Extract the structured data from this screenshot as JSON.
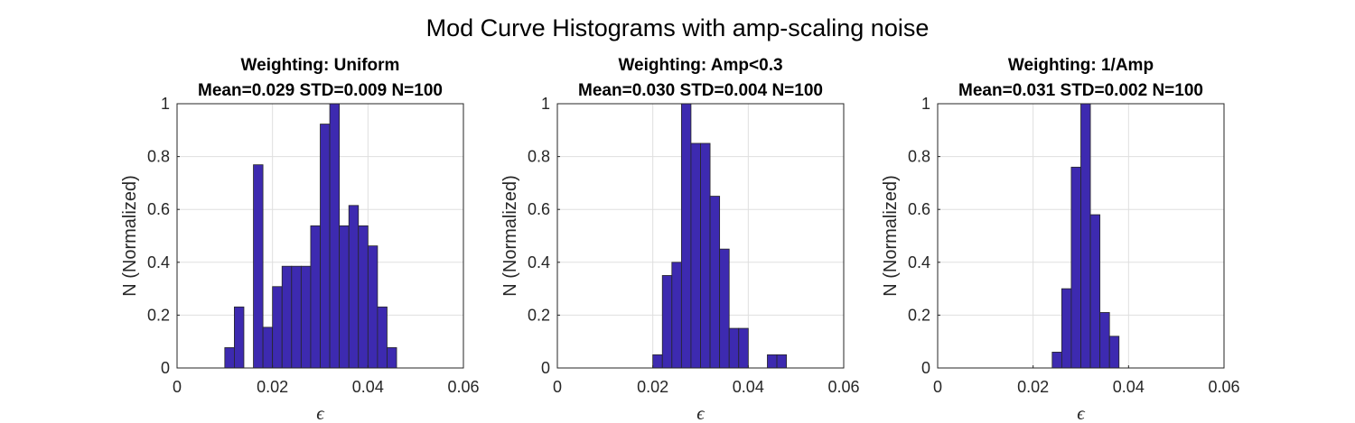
{
  "figure": {
    "suptitle": "Mod Curve Histograms with amp-scaling noise"
  },
  "colors": {
    "bar_fill": "#3d2ab0",
    "bar_edge": "#262626",
    "grid": "#dfdfdf",
    "axis": "#262626"
  },
  "chart_data": [
    {
      "type": "bar",
      "title_line1": "Weighting: Uniform",
      "title_line2": "Mean=0.029 STD=0.009 N=100",
      "xlabel": "ϵ",
      "ylabel": "N (Normalized)",
      "xlim": [
        0,
        0.06
      ],
      "ylim": [
        0,
        1
      ],
      "xticks": [
        "0",
        "0.02",
        "0.04",
        "0.06"
      ],
      "yticks": [
        "0",
        "0.2",
        "0.4",
        "0.6",
        "0.8",
        "1"
      ],
      "grid": true,
      "bin_edges": [
        0.01,
        0.012,
        0.014,
        0.016,
        0.018,
        0.02,
        0.022,
        0.024,
        0.026,
        0.028,
        0.03,
        0.032,
        0.034,
        0.036,
        0.038,
        0.04,
        0.042,
        0.044,
        0.046,
        0.048,
        0.05,
        0.052
      ],
      "values": [
        0.077,
        0.231,
        0,
        0.769,
        0.154,
        0.308,
        0.385,
        0.385,
        0.385,
        0.538,
        0.923,
        1.0,
        0.538,
        0.615,
        0.538,
        0.462,
        0.231,
        0.077,
        0,
        0,
        0
      ]
    },
    {
      "type": "bar",
      "title_line1": "Weighting: Amp<0.3",
      "title_line2": "Mean=0.030 STD=0.004 N=100",
      "xlabel": "ϵ",
      "ylabel": "N (Normalized)",
      "xlim": [
        0,
        0.06
      ],
      "ylim": [
        0,
        1
      ],
      "xticks": [
        "0",
        "0.02",
        "0.04",
        "0.06"
      ],
      "yticks": [
        "0",
        "0.2",
        "0.4",
        "0.6",
        "0.8",
        "1"
      ],
      "grid": true,
      "bin_edges": [
        0.01,
        0.012,
        0.014,
        0.016,
        0.018,
        0.02,
        0.022,
        0.024,
        0.026,
        0.028,
        0.03,
        0.032,
        0.034,
        0.036,
        0.038,
        0.04,
        0.042,
        0.044,
        0.046,
        0.048,
        0.05,
        0.052
      ],
      "values": [
        0,
        0,
        0,
        0,
        0,
        0.05,
        0.35,
        0.4,
        1.0,
        0.85,
        0.85,
        0.65,
        0.45,
        0.15,
        0.15,
        0,
        0,
        0.05,
        0.05,
        0,
        0
      ]
    },
    {
      "type": "bar",
      "title_line1": "Weighting: 1/Amp",
      "title_line2": "Mean=0.031 STD=0.002 N=100",
      "xlabel": "ϵ",
      "ylabel": "N (Normalized)",
      "xlim": [
        0,
        0.06
      ],
      "ylim": [
        0,
        1
      ],
      "xticks": [
        "0",
        "0.02",
        "0.04",
        "0.06"
      ],
      "yticks": [
        "0",
        "0.2",
        "0.4",
        "0.6",
        "0.8",
        "1"
      ],
      "grid": true,
      "bin_edges": [
        0.01,
        0.012,
        0.014,
        0.016,
        0.018,
        0.02,
        0.022,
        0.024,
        0.026,
        0.028,
        0.03,
        0.032,
        0.034,
        0.036,
        0.038,
        0.04,
        0.042,
        0.044,
        0.046,
        0.048,
        0.05,
        0.052
      ],
      "values": [
        0,
        0,
        0,
        0,
        0,
        0,
        0,
        0.06,
        0.3,
        0.76,
        1.0,
        0.58,
        0.21,
        0.12,
        0,
        0,
        0,
        0,
        0,
        0,
        0
      ]
    }
  ]
}
